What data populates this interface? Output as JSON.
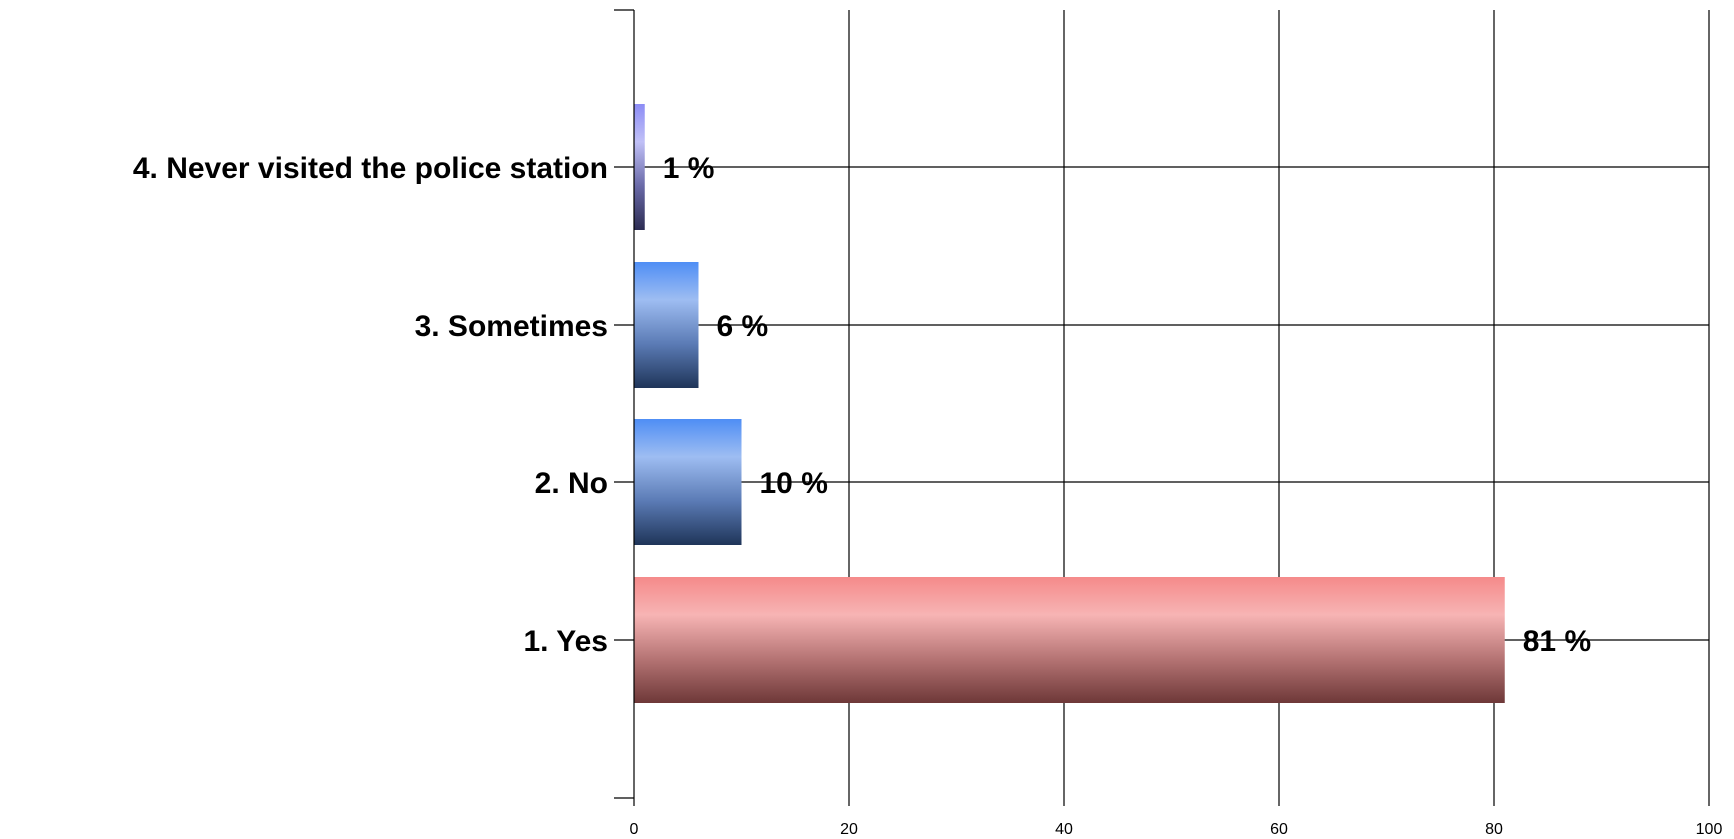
{
  "chart_data": {
    "type": "bar",
    "orientation": "horizontal",
    "categories": [
      "1. Yes",
      "2. No",
      "3. Sometimes",
      "4. Never visited the police station"
    ],
    "values": [
      81,
      10,
      6,
      1
    ],
    "data_labels": [
      "81 %",
      "10 %",
      "6 %",
      "1 %"
    ],
    "bar_colors": [
      "#f28b8b",
      "#5b8fe8",
      "#5b8fe8",
      "#8c8cf0"
    ],
    "xlim": [
      0,
      100
    ],
    "xticks": [
      0,
      20,
      40,
      60,
      80,
      100
    ],
    "xtick_labels": [
      "0",
      "20",
      "40",
      "60",
      "80",
      "100"
    ],
    "grid": true,
    "legend": "none"
  }
}
